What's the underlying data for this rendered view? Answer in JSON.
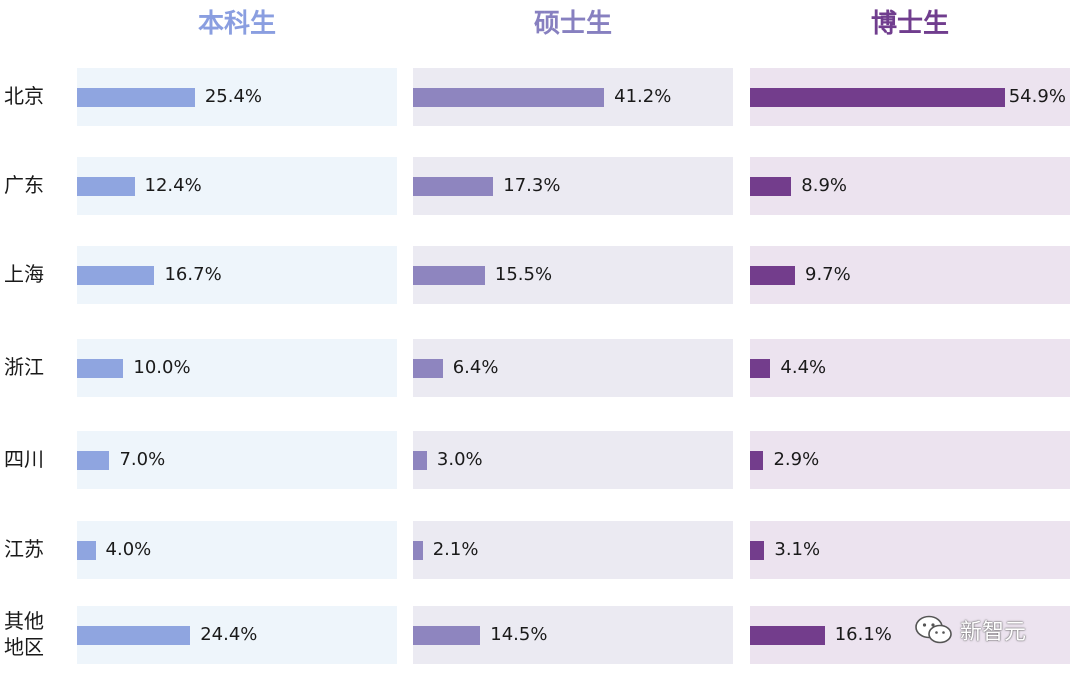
{
  "chart_data": {
    "type": "bar",
    "orientation": "horizontal",
    "categories": [
      "北京",
      "广东",
      "上海",
      "浙江",
      "四川",
      "江苏",
      "其他地区"
    ],
    "category_lines": [
      [
        "北京"
      ],
      [
        "广东"
      ],
      [
        "上海"
      ],
      [
        "浙江"
      ],
      [
        "四川"
      ],
      [
        "江苏"
      ],
      [
        "其他",
        "地区"
      ]
    ],
    "value_unit": "%",
    "xlim": [
      0,
      60
    ],
    "series": [
      {
        "name": "本科生",
        "color": "#8fa5e0",
        "panel_color": "#eef5fb",
        "header_color": "#8a9ee0",
        "values": [
          25.4,
          12.4,
          16.7,
          10.0,
          7.0,
          4.0,
          24.4
        ]
      },
      {
        "name": "硕士生",
        "color": "#8e85bf",
        "panel_color": "#ebeaf2",
        "header_color": "#8780c0",
        "values": [
          41.2,
          17.3,
          15.5,
          6.4,
          3.0,
          2.1,
          14.5
        ]
      },
      {
        "name": "博士生",
        "color": "#733d8c",
        "panel_color": "#ece3ef",
        "header_color": "#703d8e",
        "values": [
          54.9,
          8.9,
          9.7,
          4.4,
          2.9,
          3.1,
          16.1
        ]
      }
    ]
  },
  "watermark": {
    "icon": "wechat-icon",
    "text": "新智元"
  }
}
